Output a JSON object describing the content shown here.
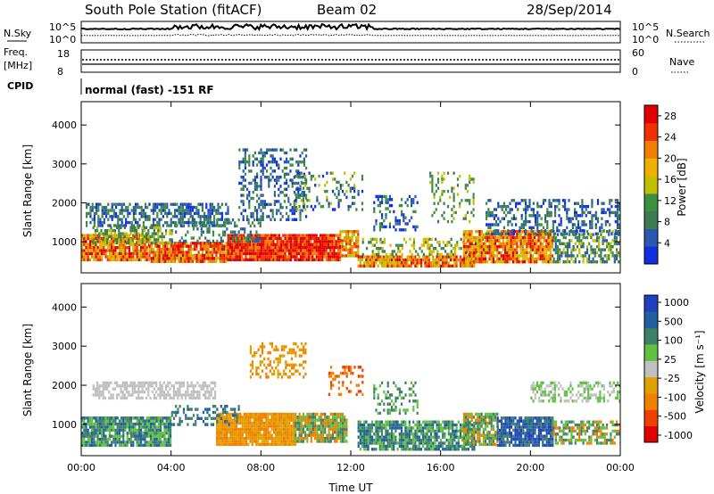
{
  "header": {
    "title": "South Pole Station (fitACF)",
    "beam": "Beam 02",
    "date": "28/Sep/2014"
  },
  "top_panels": {
    "nsky_label": "N.Sky",
    "nsearch_label": "N.Search",
    "nsky_ticks": [
      "10^5",
      "10^0"
    ],
    "nsearch_ticks": [
      "10^5",
      "10^0"
    ],
    "freq_label_1": "Freq.",
    "freq_label_2": "[MHz]",
    "freq_ticks": [
      "18",
      "8"
    ],
    "nave_label": "Nave",
    "nave_ticks": [
      "60",
      "0"
    ],
    "cpid_label": "CPID",
    "cpid_text": "normal (fast) -151 RF"
  },
  "colors": {
    "power": [
      "#1030e0",
      "#2858b0",
      "#3c7c50",
      "#3c9040",
      "#c0c000",
      "#f0b000",
      "#f08000",
      "#f03000",
      "#e00000"
    ],
    "velocity": [
      "#2040c0",
      "#2060a0",
      "#40806a",
      "#60c040",
      "#c0c0c0",
      "#e0a000",
      "#f08000",
      "#f04000",
      "#e00000"
    ]
  },
  "chart_data": [
    {
      "type": "heatmap",
      "ylabel": "Slant Range [km]",
      "yticks": [
        "1000",
        "2000",
        "3000",
        "4000"
      ],
      "xticks": [],
      "ylim": [
        200,
        4600
      ],
      "xlim": [
        "00:00",
        "24:00"
      ],
      "colorbar": {
        "label": "Power [dB]",
        "ticks": [
          "4",
          "8",
          "12",
          "16",
          "20",
          "24",
          "28"
        ],
        "range": [
          0,
          30
        ]
      }
    },
    {
      "type": "heatmap",
      "ylabel": "Slant Range [km]",
      "yticks": [
        "1000",
        "2000",
        "3000",
        "4000"
      ],
      "xticks": [
        "00:00",
        "04:00",
        "08:00",
        "12:00",
        "16:00",
        "20:00",
        "00:00"
      ],
      "xlabel": "Time UT",
      "ylim": [
        200,
        4600
      ],
      "xlim": [
        "00:00",
        "24:00"
      ],
      "colorbar": {
        "label": "Velocity [m s⁻¹]",
        "ticks": [
          "1000",
          "500",
          "100",
          "25",
          "-25",
          "-100",
          "-500",
          "-1000"
        ]
      }
    }
  ]
}
